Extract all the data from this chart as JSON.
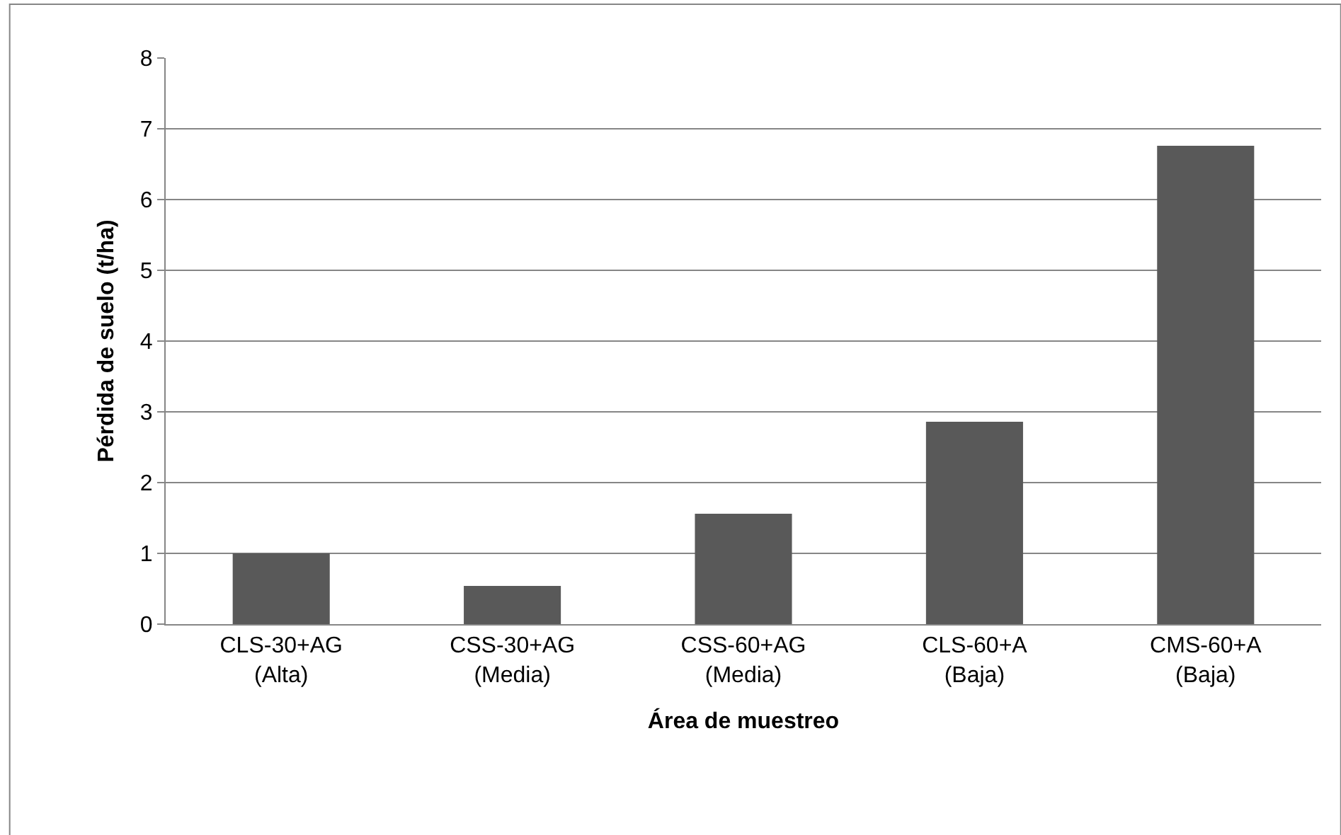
{
  "chart_data": {
    "type": "bar",
    "xlabel": "Área de muestreo",
    "ylabel": "Pérdida de suelo (t/ha)",
    "categories": [
      "CLS-30+AG\n(Alta)",
      "CSS-30+AG\n(Media)",
      "CSS-60+AG\n(Media)",
      "CLS-60+A\n(Baja)",
      "CMS-60+A\n(Baja)"
    ],
    "values": [
      1.0,
      0.54,
      1.56,
      2.86,
      6.76
    ],
    "color": "#595959",
    "ylim": [
      0,
      8
    ],
    "yticks": [
      0,
      1,
      2,
      3,
      4,
      5,
      6,
      7,
      8
    ],
    "grid": "y"
  }
}
